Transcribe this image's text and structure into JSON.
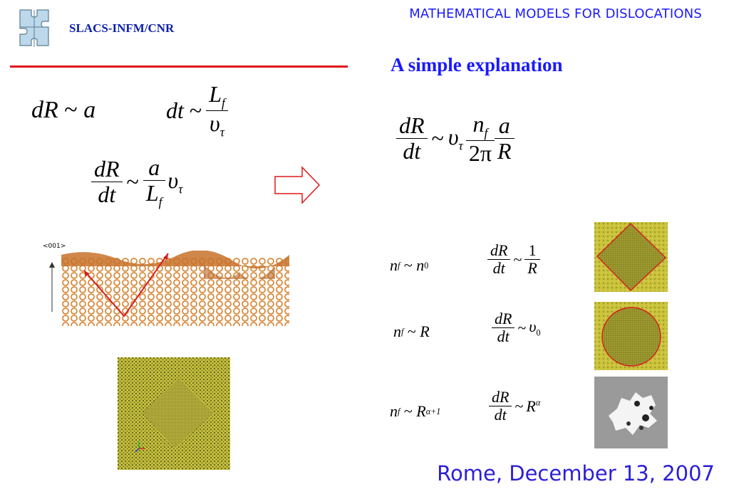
{
  "header": {
    "org": "SLACS-INFM/CNR",
    "title": "MATHEMATICAL MODELS FOR DISLOCATIONS"
  },
  "colors": {
    "accent_red": "#e0181b",
    "title_blue": "#1a1aff",
    "org_blue": "#0b1fa8",
    "footer_blue": "#2b1fd6"
  },
  "section": {
    "heading": "A simple explanation"
  },
  "eq": {
    "dR": "dR",
    "dt": "dt",
    "a": "a",
    "tilde": "~",
    "R": "R",
    "one": "1",
    "nu": "υ",
    "tau": "τ",
    "L": "L",
    "f": "f",
    "n": "n",
    "zero": "0",
    "two_pi": "2π",
    "alpha": "α",
    "alpha_plus1": "α+1"
  },
  "figure": {
    "axis_label": "<001>"
  },
  "footer": {
    "date": "Rome, December 13, 2007"
  },
  "icons": [
    "logo-puzzle-icon",
    "right-arrow-icon"
  ]
}
